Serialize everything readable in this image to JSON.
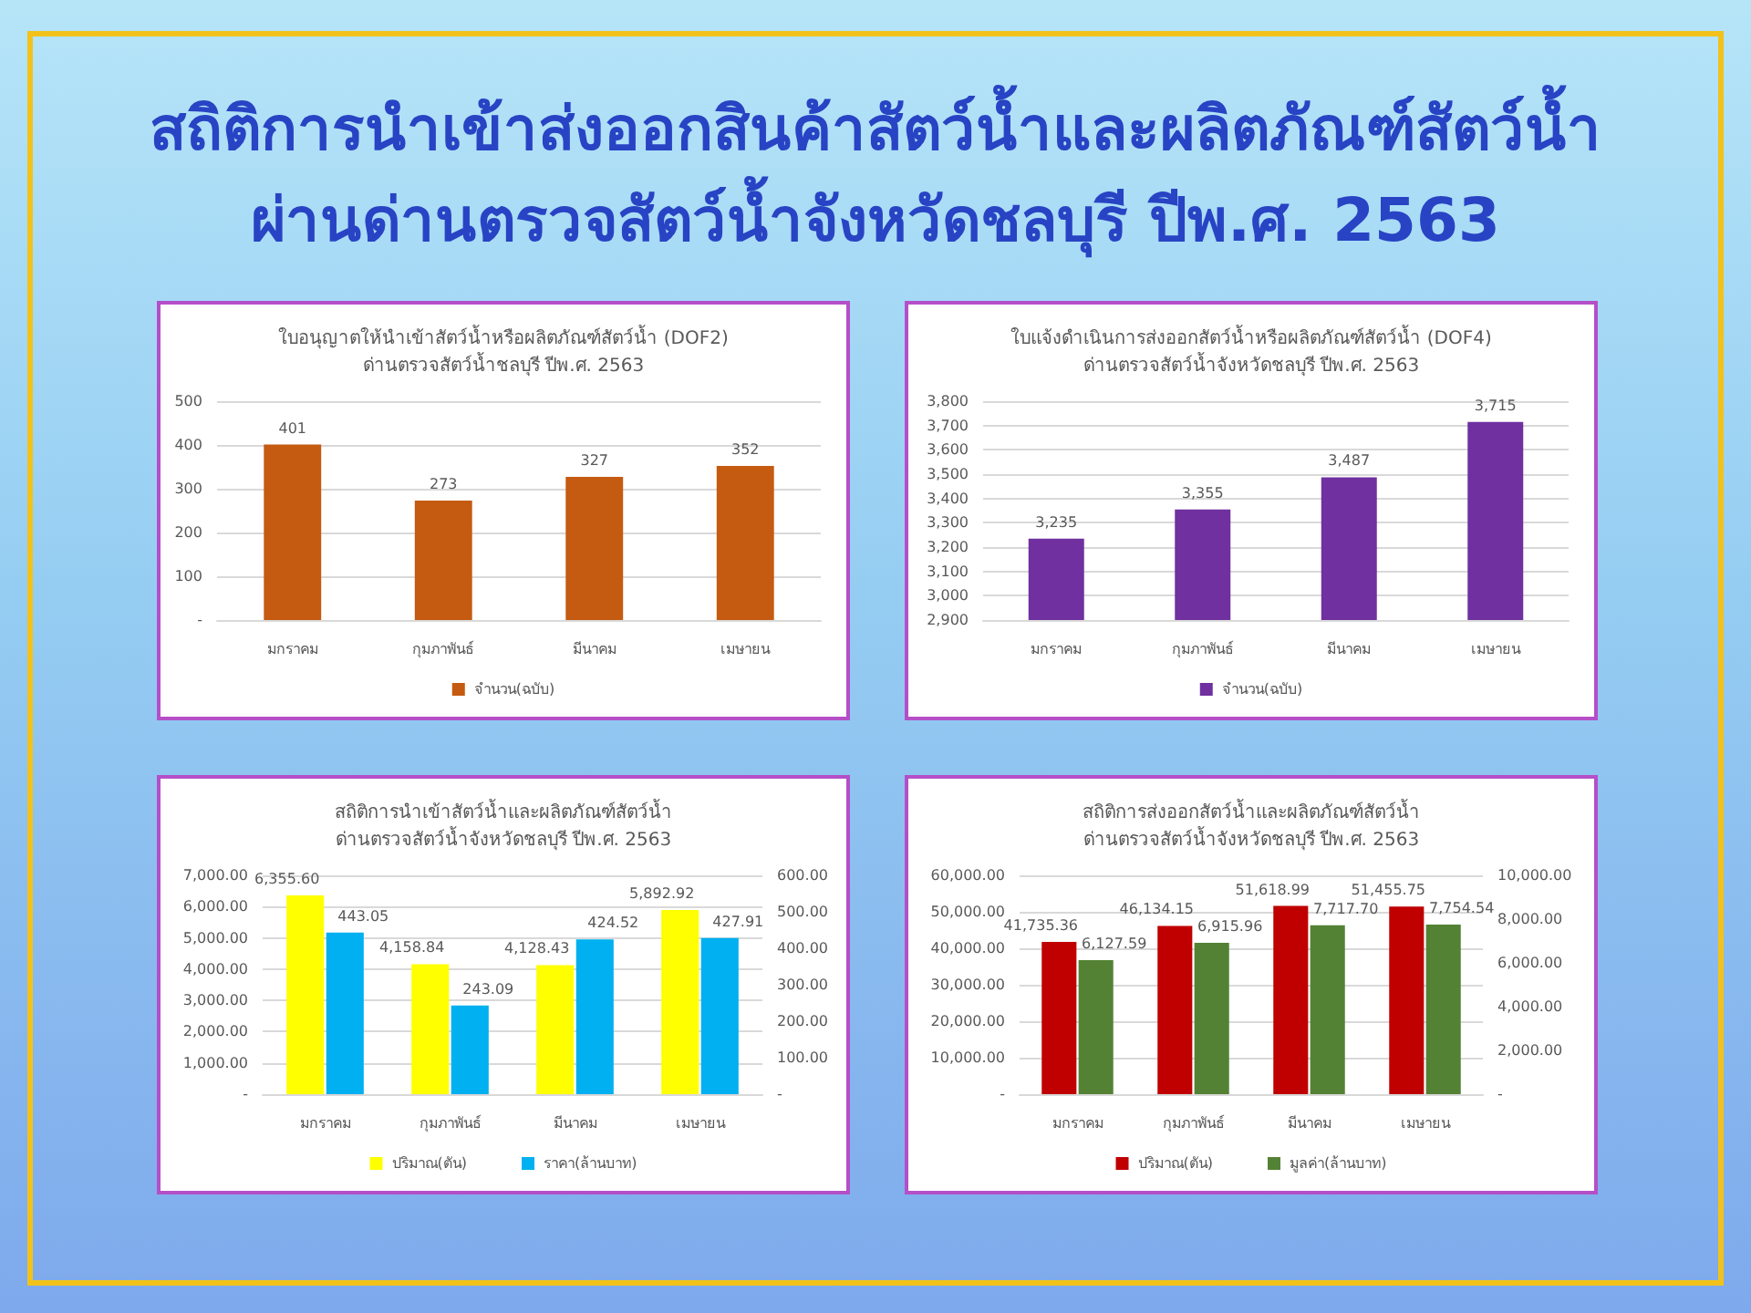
{
  "chart_data": [
    {
      "type": "other",
      "title": "สถิติการนำเข้าส่งออกสินค้าสัตว์น้ำและผลิตภัณฑ์สัตว์น้ำ",
      "subtitle": "ผ่านด่านตรวจสัตว์น้ำจังหวัดชลบุรี ปีพ.ศ. 2563"
    },
    {
      "type": "bar",
      "title": "ใบอนุญาตให้นำเข้าสัตว์น้ำหรือผลิตภัณฑ์สัตว์น้ำ (DOF2)",
      "subtitle": "ด่านตรวจสัตว์น้ำชลบุรี ปีพ.ศ. 2563",
      "categories": [
        "มกราคม",
        "กุมภาพันธ์",
        "มีนาคม",
        "เมษายน"
      ],
      "series": [
        {
          "name": "จำนวน(ฉบับ)",
          "color": "#c55a11",
          "values": [
            401,
            273,
            327,
            352
          ]
        }
      ],
      "ylim": [
        0,
        500
      ],
      "yticks": [
        {
          "value": 0,
          "label": "-"
        },
        100,
        200,
        300,
        400,
        500
      ],
      "grid": "y",
      "legend": "bottom",
      "data_labels": true
    },
    {
      "type": "bar",
      "title": "ใบแจ้งดำเนินการส่งออกสัตว์น้ำหรือผลิตภัณฑ์สัตว์น้ำ (DOF4)",
      "subtitle": "ด่านตรวจสัตว์น้ำจังหวัดชลบุรี ปีพ.ศ. 2563",
      "categories": [
        "มกราคม",
        "กุมภาพันธ์",
        "มีนาคม",
        "เมษายน"
      ],
      "series": [
        {
          "name": "จำนวน(ฉบับ)",
          "color": "#7030a0",
          "values": [
            3235,
            3355,
            3487,
            3715
          ],
          "value_labels": [
            "3,235",
            "3,355",
            "3,487",
            "3,715"
          ]
        }
      ],
      "ylim": [
        2900,
        3800
      ],
      "yticks": [
        {
          "value": 2900,
          "label": "2,900"
        },
        {
          "value": 3000,
          "label": "3,000"
        },
        {
          "value": 3100,
          "label": "3,100"
        },
        {
          "value": 3200,
          "label": "3,200"
        },
        {
          "value": 3300,
          "label": "3,300"
        },
        {
          "value": 3400,
          "label": "3,400"
        },
        {
          "value": 3500,
          "label": "3,500"
        },
        {
          "value": 3600,
          "label": "3,600"
        },
        {
          "value": 3700,
          "label": "3,700"
        },
        {
          "value": 3800,
          "label": "3,800"
        }
      ],
      "grid": "y",
      "legend": "bottom"
    },
    {
      "type": "bar",
      "title": "สถิติการนำเข้าสัตว์น้ำและผลิตภัณฑ์สัตว์น้ำ",
      "subtitle": "ด่านตรวจสัตว์น้ำจังหวัดชลบุรี ปีพ.ศ. 2563",
      "categories": [
        "มกราคม",
        "กุมภาพันธ์",
        "มีนาคม",
        "เมษายน"
      ],
      "series": [
        {
          "name": "ปริมาณ(ตัน)",
          "color": "#ffff00",
          "values": [
            6355.6,
            4158.84,
            4128.43,
            5892.92
          ],
          "value_labels": [
            "6,355.60",
            "4,158.84",
            "4,128.43",
            "5,892.92"
          ]
        },
        {
          "name": "ราคา(ล้านบาท)",
          "color": "#00b0f0",
          "axis": "y2",
          "values": [
            443.05,
            243.09,
            424.52,
            427.91
          ],
          "value_labels": [
            "443.05",
            "243.09",
            "424.52",
            "427.91"
          ]
        }
      ],
      "ylim": [
        0,
        7000
      ],
      "yticks": [
        {
          "value": 0,
          "label": "-"
        },
        {
          "value": 1000,
          "label": "1,000.00"
        },
        {
          "value": 2000,
          "label": "2,000.00"
        },
        {
          "value": 3000,
          "label": "3,000.00"
        },
        {
          "value": 4000,
          "label": "4,000.00"
        },
        {
          "value": 5000,
          "label": "5,000.00"
        },
        {
          "value": 6000,
          "label": "6,000.00"
        },
        {
          "value": 7000,
          "label": "7,000.00"
        }
      ],
      "y2lim": [
        0,
        600
      ],
      "y2ticks": [
        {
          "value": 0,
          "label": "-"
        },
        {
          "value": 100,
          "label": "100.00"
        },
        {
          "value": 200,
          "label": "200.00"
        },
        {
          "value": 300,
          "label": "300.00"
        },
        {
          "value": 400,
          "label": "400.00"
        },
        {
          "value": 500,
          "label": "500.00"
        },
        {
          "value": 600,
          "label": "600.00"
        }
      ],
      "grid": "y",
      "legend": "bottom"
    },
    {
      "type": "bar",
      "title": "สถิติการส่งออกสัตว์น้ำและผลิตภัณฑ์สัตว์น้ำ",
      "subtitle": "ด่านตรวจสัตว์น้ำจังหวัดชลบุรี ปีพ.ศ. 2563",
      "categories": [
        "มกราคม",
        "กุมภาพันธ์",
        "มีนาคม",
        "เมษายน"
      ],
      "series": [
        {
          "name": "ปริมาณ(ตัน)",
          "color": "#c00000",
          "values": [
            41735.36,
            46134.15,
            51618.99,
            51455.75
          ],
          "value_labels": [
            "41,735.36",
            "46,134.15",
            "51,618.99",
            "51,455.75"
          ]
        },
        {
          "name": "มูลค่า(ล้านบาท)",
          "color": "#548235",
          "axis": "y2",
          "values": [
            6127.59,
            6915.96,
            7717.7,
            7754.54
          ],
          "value_labels": [
            "6,127.59",
            "6,915.96",
            "7,717.70",
            "7,754.54"
          ]
        }
      ],
      "ylim": [
        0,
        60000
      ],
      "yticks": [
        {
          "value": 0,
          "label": "-"
        },
        {
          "value": 10000,
          "label": "10,000.00"
        },
        {
          "value": 20000,
          "label": "20,000.00"
        },
        {
          "value": 30000,
          "label": "30,000.00"
        },
        {
          "value": 40000,
          "label": "40,000.00"
        },
        {
          "value": 50000,
          "label": "50,000.00"
        },
        {
          "value": 60000,
          "label": "60,000.00"
        }
      ],
      "y2lim": [
        0,
        10000
      ],
      "y2ticks": [
        {
          "value": 0,
          "label": "-"
        },
        {
          "value": 2000,
          "label": "2,000.00"
        },
        {
          "value": 4000,
          "label": "4,000.00"
        },
        {
          "value": 6000,
          "label": "6,000.00"
        },
        {
          "value": 8000,
          "label": "8,000.00"
        },
        {
          "value": 10000,
          "label": "10,000.00"
        }
      ],
      "grid": "y",
      "legend": "bottom"
    }
  ]
}
